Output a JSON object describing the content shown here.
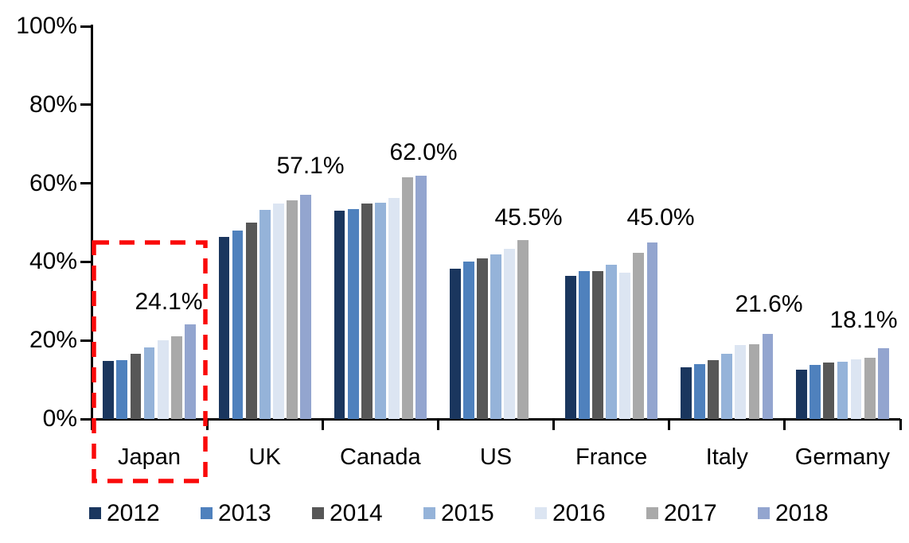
{
  "chart_data": {
    "type": "bar",
    "title": "",
    "categories": [
      "Japan",
      "UK",
      "Canada",
      "US",
      "France",
      "Italy",
      "Germany"
    ],
    "series": [
      {
        "name": "2012",
        "color": "#1A365E",
        "values": [
          14.8,
          46.3,
          53.0,
          38.2,
          36.4,
          13.2,
          12.5
        ]
      },
      {
        "name": "2013",
        "color": "#4F81BD",
        "values": [
          15.0,
          47.9,
          53.5,
          40.0,
          37.6,
          13.9,
          13.8
        ]
      },
      {
        "name": "2014",
        "color": "#575757",
        "values": [
          16.7,
          50.0,
          54.8,
          40.9,
          37.7,
          14.9,
          14.3
        ]
      },
      {
        "name": "2015",
        "color": "#95B3D9",
        "values": [
          18.2,
          53.3,
          55.0,
          42.0,
          39.3,
          16.5,
          14.5
        ]
      },
      {
        "name": "2016",
        "color": "#DCE5F2",
        "values": [
          20.0,
          54.8,
          56.2,
          43.4,
          37.3,
          18.8,
          15.2
        ]
      },
      {
        "name": "2017",
        "color": "#A9A9A9",
        "values": [
          21.1,
          55.7,
          61.6,
          45.5,
          42.3,
          19.0,
          15.5
        ]
      },
      {
        "name": "2018",
        "color": "#93A5CF",
        "values": [
          24.1,
          57.1,
          62.0,
          null,
          45.0,
          21.6,
          18.1
        ]
      }
    ],
    "annotations": [
      {
        "category": "Japan",
        "text": "24.1%"
      },
      {
        "category": "UK",
        "text": "57.1%"
      },
      {
        "category": "Canada",
        "text": "62.0%"
      },
      {
        "category": "US",
        "text": "45.5%"
      },
      {
        "category": "France",
        "text": "45.0%"
      },
      {
        "category": "Italy",
        "text": "21.6%"
      },
      {
        "category": "Germany",
        "text": "18.1%"
      }
    ],
    "y_axis": {
      "min": 0,
      "max": 100,
      "step": 20,
      "tick_labels": [
        "0%",
        "20%",
        "40%",
        "60%",
        "80%",
        "100%"
      ]
    },
    "x_axis": {
      "label": ""
    },
    "legend": {
      "position": "bottom",
      "entries": [
        "2012",
        "2013",
        "2014",
        "2015",
        "2016",
        "2017",
        "2018"
      ]
    },
    "grid": false,
    "highlight": {
      "category": "Japan",
      "shape": "dashed-rectangle",
      "color": "#FA0A0A"
    },
    "text_color": "#000000",
    "axis_color": "#000000"
  }
}
